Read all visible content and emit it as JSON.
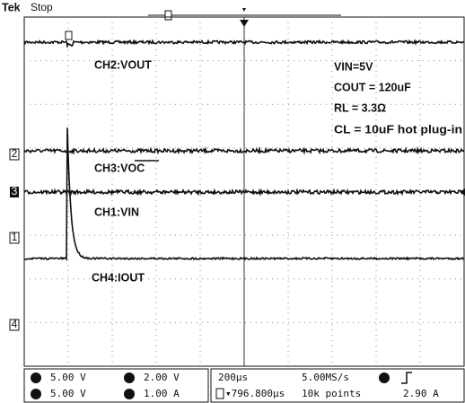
{
  "header": {
    "brand": "Tek",
    "status": "Stop"
  },
  "channel_markers": [
    "2",
    "3",
    "1",
    "4"
  ],
  "traces": [
    {
      "label": "CH2:VOUT"
    },
    {
      "label": "CH3:VOC"
    },
    {
      "label": "CH1:VIN"
    },
    {
      "label": "CH4:IOUT"
    }
  ],
  "annotations": [
    "VIN=5V",
    "COUT = 120uF",
    "RL = 3.3Ω",
    "CL = 10uF hot plug-in"
  ],
  "readout": {
    "rows": [
      [
        "5.00 V",
        "2.00 V",
        "200µs",
        "5.00MS/s",
        "2.90 A"
      ],
      [
        "5.00 V",
        "1.00 A",
        "▾796.800µs",
        "10k points"
      ]
    ]
  }
}
